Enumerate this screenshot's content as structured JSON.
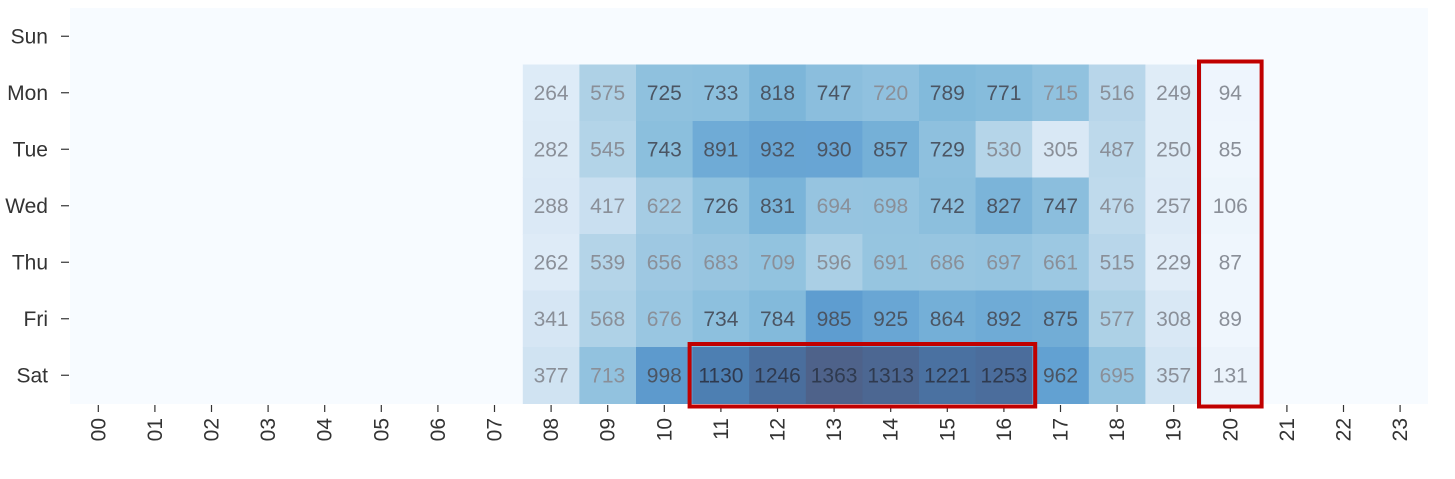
{
  "chart_data": {
    "type": "heatmap",
    "title": "",
    "xlabel": "",
    "ylabel": "",
    "x_categories": [
      "00",
      "01",
      "02",
      "03",
      "04",
      "05",
      "06",
      "07",
      "08",
      "09",
      "10",
      "11",
      "12",
      "13",
      "14",
      "15",
      "16",
      "17",
      "18",
      "19",
      "20",
      "21",
      "22",
      "23"
    ],
    "y_categories": [
      "Sun",
      "Mon",
      "Tue",
      "Wed",
      "Thu",
      "Fri",
      "Sat"
    ],
    "values": [
      [
        null,
        null,
        null,
        null,
        null,
        null,
        null,
        null,
        null,
        null,
        null,
        null,
        null,
        null,
        null,
        null,
        null,
        null,
        null,
        null,
        null,
        null,
        null,
        null
      ],
      [
        null,
        null,
        null,
        null,
        null,
        null,
        null,
        null,
        264,
        575,
        725,
        733,
        818,
        747,
        720,
        789,
        771,
        715,
        516,
        249,
        94,
        null,
        null,
        null
      ],
      [
        null,
        null,
        null,
        null,
        null,
        null,
        null,
        null,
        282,
        545,
        743,
        891,
        932,
        930,
        857,
        729,
        530,
        305,
        487,
        250,
        85,
        null,
        null,
        null
      ],
      [
        null,
        null,
        null,
        null,
        null,
        null,
        null,
        null,
        288,
        417,
        622,
        726,
        831,
        694,
        698,
        742,
        827,
        747,
        476,
        257,
        106,
        null,
        null,
        null
      ],
      [
        null,
        null,
        null,
        null,
        null,
        null,
        null,
        null,
        262,
        539,
        656,
        683,
        709,
        596,
        691,
        686,
        697,
        661,
        515,
        229,
        87,
        null,
        null,
        null
      ],
      [
        null,
        null,
        null,
        null,
        null,
        null,
        null,
        null,
        341,
        568,
        676,
        734,
        784,
        985,
        925,
        864,
        892,
        875,
        577,
        308,
        89,
        null,
        null,
        null
      ],
      [
        null,
        null,
        null,
        null,
        null,
        null,
        null,
        null,
        377,
        713,
        998,
        1130,
        1246,
        1363,
        1313,
        1221,
        1253,
        962,
        695,
        357,
        131,
        null,
        null,
        null
      ]
    ],
    "colormap": "Blues",
    "empty_color": "#f7fbff",
    "highlight_color": "#c00000",
    "highlights": [
      {
        "rows": [
          "Mon",
          "Sat"
        ],
        "cols": [
          "20",
          "20"
        ]
      },
      {
        "rows": [
          "Sat",
          "Sat"
        ],
        "cols": [
          "11",
          "16"
        ]
      }
    ]
  }
}
